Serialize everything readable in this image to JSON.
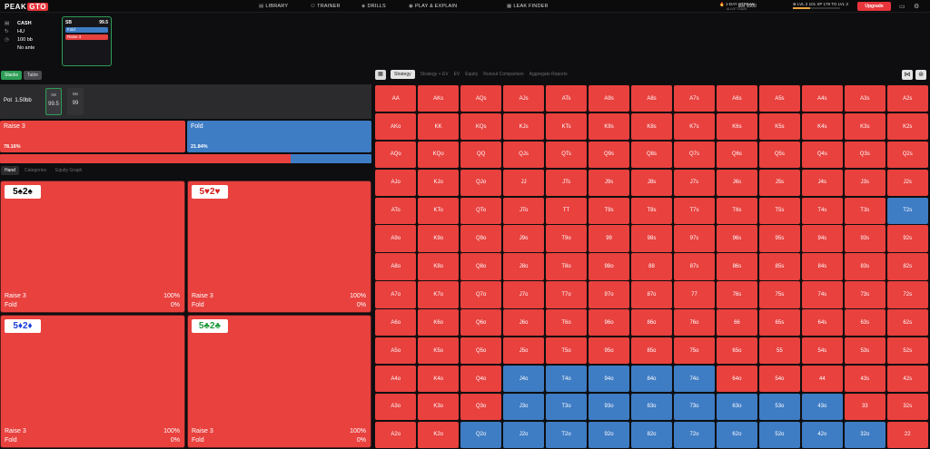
{
  "colors": {
    "raise": "#e8413e",
    "fold": "#3e7cc4",
    "accent": "#2e9e56",
    "brand": "#e8353b"
  },
  "header": {
    "logo_peak": "PEAK",
    "logo_gto": "GTO",
    "nav": [
      {
        "icon": "book-icon",
        "label": "LIBRARY"
      },
      {
        "icon": "trainer-icon",
        "label": "TRAINER"
      },
      {
        "icon": "drills-icon",
        "label": "DRILLS"
      },
      {
        "icon": "play-icon",
        "label": "PLAY & EXPLAIN"
      },
      {
        "icon": "leak-icon",
        "label": "LEAK FINDER"
      }
    ],
    "streak_title": "1-DAY STREAK",
    "streak_sub": "ALIVE TODAY",
    "elo": "Elo 1000",
    "level": "LVL 2",
    "xp": "101 XP",
    "to_next": "179 TO LVL 3",
    "level_progress": 0.36,
    "upgrade": "Upgrade"
  },
  "settings": {
    "game": "CASH",
    "format": "HU",
    "stack": "100 bb",
    "ante": "No ante"
  },
  "position_card": {
    "pos": "SB",
    "stack": "99.5",
    "actions": [
      "Fold",
      "Raise 3"
    ]
  },
  "left_tabs": [
    "Stacks",
    "Table"
  ],
  "pot": {
    "label": "Pot",
    "value": "1.50bb",
    "seats": [
      {
        "pos": "SB",
        "stack": "99.5"
      },
      {
        "pos": "BB",
        "stack": "99"
      }
    ]
  },
  "strategy": [
    {
      "label": "Raise 3",
      "pct": "78.16%",
      "frac": 0.7816
    },
    {
      "label": "Fold",
      "pct": "21.84%",
      "frac": 0.2184
    }
  ],
  "hand_tabs": [
    "Hand",
    "Categories",
    "Equity Graph"
  ],
  "combos": [
    {
      "cards": "5♠2♠",
      "color": "#000",
      "raise": "Raise 3",
      "raise_pct": "100%",
      "fold": "Fold",
      "fold_pct": "0%"
    },
    {
      "cards": "5♥2♥",
      "color": "#d81e1e",
      "raise": "Raise 3",
      "raise_pct": "100%",
      "fold": "Fold",
      "fold_pct": "0%"
    },
    {
      "cards": "5♦2♦",
      "color": "#1e3fd8",
      "raise": "Raise 3",
      "raise_pct": "100%",
      "fold": "Fold",
      "fold_pct": "0%"
    },
    {
      "cards": "5♣2♣",
      "color": "#1e9a3a",
      "raise": "Raise 3",
      "raise_pct": "100%",
      "fold": "Fold",
      "fold_pct": "0%"
    }
  ],
  "right_tabs": [
    "Strategy",
    "Strategy + EV",
    "EV",
    "Equity",
    "Runout Comparison",
    "Aggregate Reports"
  ],
  "grid": {
    "ranks": [
      "A",
      "K",
      "Q",
      "J",
      "T",
      "9",
      "8",
      "7",
      "6",
      "5",
      "4",
      "3",
      "2"
    ],
    "fold_hands": [
      "T2s",
      "J4o",
      "T4o",
      "94o",
      "84o",
      "74o",
      "J3o",
      "T3o",
      "93o",
      "83o",
      "73o",
      "63o",
      "53o",
      "43o",
      "Q2o",
      "J2o",
      "T2o",
      "92o",
      "82o",
      "72o",
      "62o",
      "52o",
      "42o",
      "32o"
    ]
  }
}
